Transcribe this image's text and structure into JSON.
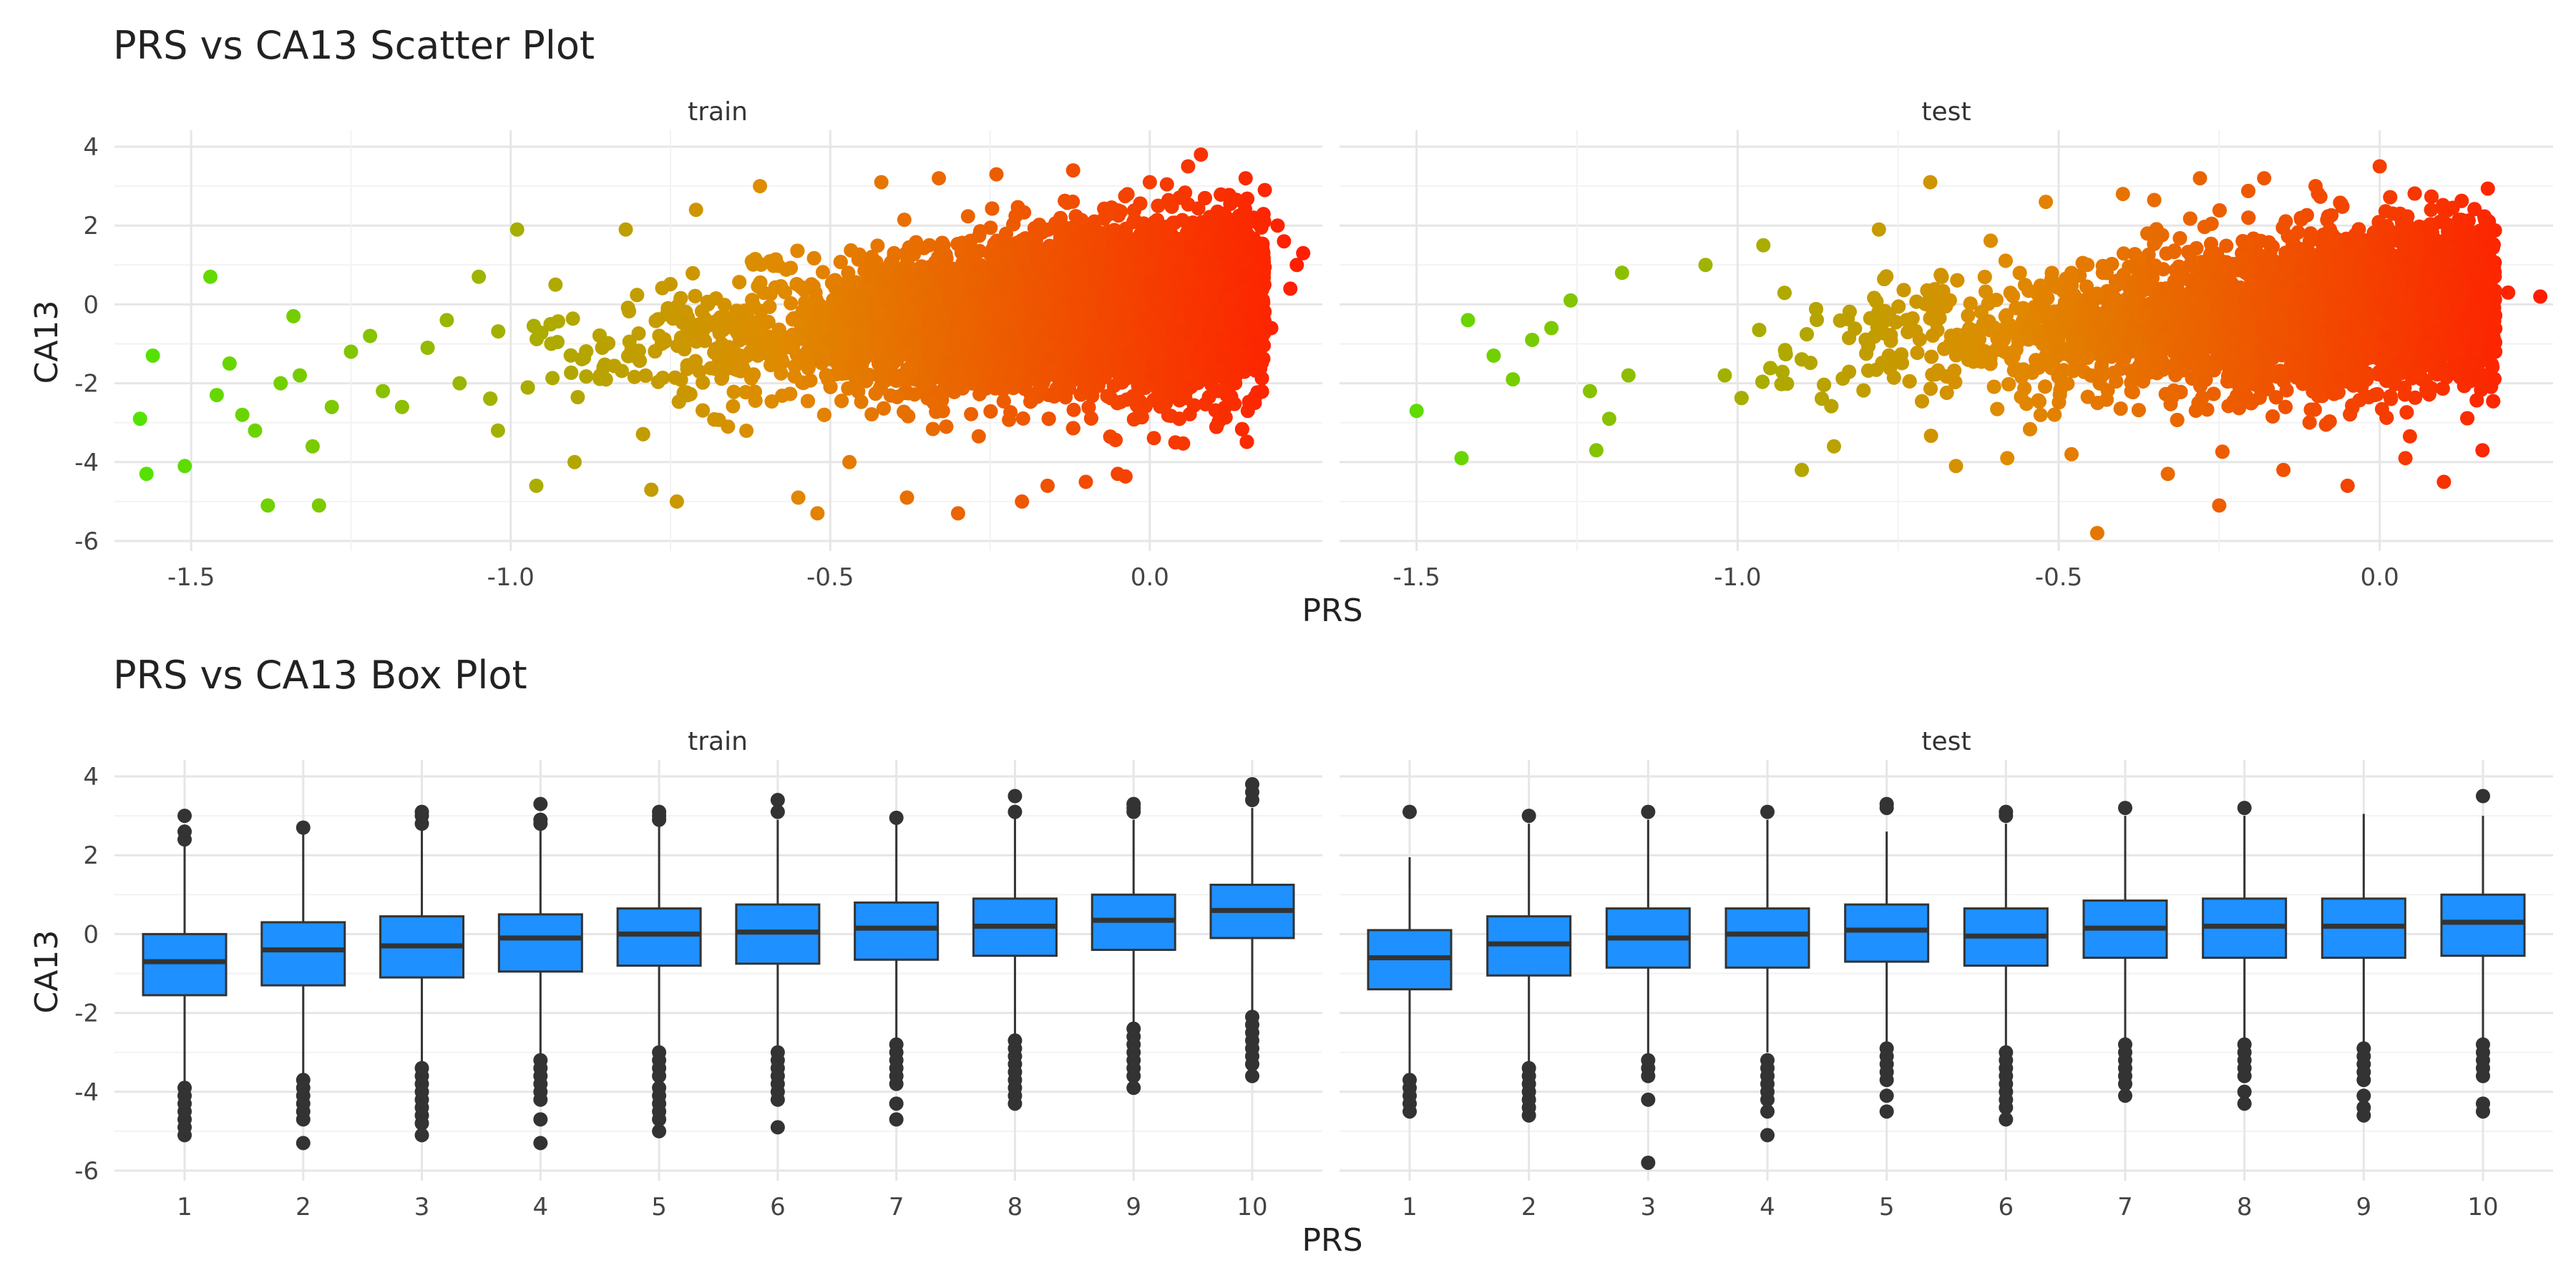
{
  "figure": {
    "scatter_title": "PRS vs CA13 Scatter Plot",
    "box_title": "PRS vs CA13 Box Plot",
    "panel_labels": [
      "train",
      "test"
    ]
  },
  "chart_data": [
    {
      "type": "scatter",
      "title": "PRS vs CA13 Scatter Plot",
      "xlabel": "PRS",
      "ylabel": "CA13",
      "facets": [
        "train",
        "test"
      ],
      "xlim": [
        -1.62,
        0.27
      ],
      "ylim": [
        -6.0,
        4.0
      ],
      "x_ticks": [
        -1.5,
        -1.0,
        -0.5,
        0.0
      ],
      "x_tick_labels": [
        "-1.5",
        "-1.0",
        "-0.5",
        "0.0"
      ],
      "y_ticks": [
        -6,
        -4,
        -2,
        0,
        2,
        4
      ],
      "y_tick_labels": [
        "-6",
        "-4",
        "-2",
        "0",
        "2",
        "4"
      ],
      "grid": true,
      "legend": "none",
      "color_gradient": {
        "low": "#4ee600",
        "mid": "#e08a00",
        "high": "#ff1a00",
        "by": "PRS"
      },
      "trend": {
        "slope": 1.1,
        "intercept": 0.0,
        "spread_sd": 1.05
      },
      "series": [
        {
          "name": "train",
          "points": [
            [
              -1.58,
              -2.9
            ],
            [
              -1.57,
              -4.3
            ],
            [
              -1.56,
              -1.3
            ],
            [
              -1.51,
              -4.1
            ],
            [
              -1.47,
              0.7
            ],
            [
              -1.46,
              -2.3
            ],
            [
              -1.44,
              -1.5
            ],
            [
              -1.42,
              -2.8
            ],
            [
              -1.4,
              -3.2
            ],
            [
              -1.38,
              -5.1
            ],
            [
              -1.36,
              -2.0
            ],
            [
              -1.34,
              -0.3
            ],
            [
              -1.33,
              -1.8
            ],
            [
              -1.31,
              -3.6
            ],
            [
              -1.3,
              -5.1
            ],
            [
              -1.28,
              -2.6
            ],
            [
              -1.25,
              -1.2
            ],
            [
              -1.22,
              -0.8
            ],
            [
              -1.2,
              -2.2
            ],
            [
              -1.17,
              -2.6
            ],
            [
              -1.13,
              -1.1
            ],
            [
              -1.1,
              -0.4
            ],
            [
              -1.08,
              -2.0
            ],
            [
              -1.05,
              0.7
            ],
            [
              -1.02,
              -3.2
            ],
            [
              -0.99,
              1.9
            ],
            [
              -0.96,
              -4.6
            ],
            [
              -0.93,
              0.5
            ],
            [
              -0.9,
              -4.0
            ],
            [
              -0.86,
              -1.8
            ],
            [
              -0.82,
              1.9
            ],
            [
              -0.78,
              -4.7
            ],
            [
              -0.74,
              -5.0
            ],
            [
              -0.71,
              2.4
            ],
            [
              -0.66,
              -3.1
            ],
            [
              -0.61,
              3.0
            ],
            [
              -0.55,
              -4.9
            ],
            [
              -0.52,
              -5.3
            ],
            [
              -0.47,
              -4.0
            ],
            [
              -0.42,
              3.1
            ],
            [
              -0.38,
              -4.9
            ],
            [
              -0.33,
              3.2
            ],
            [
              -0.3,
              -5.3
            ],
            [
              -0.24,
              3.3
            ],
            [
              -0.2,
              -5.0
            ],
            [
              -0.16,
              -4.6
            ],
            [
              -0.12,
              3.4
            ],
            [
              -0.1,
              -4.5
            ],
            [
              -0.05,
              -4.3
            ],
            [
              0.0,
              3.1
            ],
            [
              0.04,
              -3.5
            ],
            [
              0.06,
              3.5
            ],
            [
              0.08,
              3.8
            ],
            [
              0.12,
              -2.3
            ],
            [
              0.15,
              3.2
            ],
            [
              0.18,
              2.9
            ],
            [
              0.2,
              2.0
            ],
            [
              0.21,
              1.6
            ],
            [
              0.23,
              1.0
            ],
            [
              0.22,
              0.4
            ],
            [
              0.24,
              1.3
            ],
            [
              0.19,
              -0.6
            ]
          ]
        },
        {
          "name": "test",
          "points": [
            [
              -1.5,
              -2.7
            ],
            [
              -1.43,
              -3.9
            ],
            [
              -1.42,
              -0.4
            ],
            [
              -1.38,
              -1.3
            ],
            [
              -1.35,
              -1.9
            ],
            [
              -1.32,
              -0.9
            ],
            [
              -1.29,
              -0.6
            ],
            [
              -1.26,
              0.1
            ],
            [
              -1.23,
              -2.2
            ],
            [
              -1.22,
              -3.7
            ],
            [
              -1.2,
              -2.9
            ],
            [
              -1.18,
              0.8
            ],
            [
              -1.17,
              -1.8
            ],
            [
              -1.05,
              1.0
            ],
            [
              -1.02,
              -1.8
            ],
            [
              -0.96,
              1.5
            ],
            [
              -0.9,
              -4.2
            ],
            [
              -0.85,
              -3.6
            ],
            [
              -0.78,
              1.9
            ],
            [
              -0.7,
              3.1
            ],
            [
              -0.66,
              -4.1
            ],
            [
              -0.58,
              -3.9
            ],
            [
              -0.52,
              2.6
            ],
            [
              -0.48,
              -3.8
            ],
            [
              -0.44,
              -5.8
            ],
            [
              -0.4,
              2.8
            ],
            [
              -0.33,
              -4.3
            ],
            [
              -0.28,
              3.2
            ],
            [
              -0.25,
              -5.1
            ],
            [
              -0.18,
              3.2
            ],
            [
              -0.15,
              -4.2
            ],
            [
              -0.1,
              3.0
            ],
            [
              -0.05,
              -4.6
            ],
            [
              0.0,
              3.5
            ],
            [
              0.04,
              -3.9
            ],
            [
              0.08,
              2.4
            ],
            [
              0.1,
              -4.5
            ],
            [
              0.13,
              2.1
            ],
            [
              0.16,
              -3.7
            ],
            [
              0.17,
              1.6
            ],
            [
              0.18,
              -1.2
            ],
            [
              0.2,
              0.3
            ],
            [
              0.25,
              0.2
            ]
          ],
          "n_dense_points": 6000
        }
      ]
    },
    {
      "type": "box",
      "title": "PRS vs CA13 Box Plot",
      "xlabel": "PRS",
      "ylabel": "CA13",
      "facets": [
        "train",
        "test"
      ],
      "categories": [
        "1",
        "2",
        "3",
        "4",
        "5",
        "6",
        "7",
        "8",
        "9",
        "10"
      ],
      "ylim": [
        -6.0,
        4.0
      ],
      "y_ticks": [
        -6,
        -4,
        -2,
        0,
        2,
        4
      ],
      "y_tick_labels": [
        "-6",
        "-4",
        "-2",
        "0",
        "2",
        "4"
      ],
      "grid": true,
      "legend": "none",
      "box_color": "#1e90ff",
      "series": [
        {
          "name": "train",
          "boxes": [
            {
              "q1": -1.55,
              "median": -0.7,
              "q3": 0.0,
              "whisker_low": -3.8,
              "whisker_high": 2.3,
              "outliers": [
                3.0,
                2.6,
                2.4,
                -3.9,
                -4.1,
                -4.3,
                -4.5,
                -4.7,
                -4.9,
                -5.1
              ]
            },
            {
              "q1": -1.3,
              "median": -0.4,
              "q3": 0.3,
              "whisker_low": -3.6,
              "whisker_high": 2.6,
              "outliers": [
                2.7,
                -3.7,
                -3.9,
                -4.1,
                -4.3,
                -4.5,
                -4.7,
                -5.3
              ]
            },
            {
              "q1": -1.1,
              "median": -0.3,
              "q3": 0.45,
              "whisker_low": -3.3,
              "whisker_high": 2.7,
              "outliers": [
                3.1,
                3.0,
                2.8,
                -3.4,
                -3.6,
                -3.8,
                -4.0,
                -4.2,
                -4.4,
                -4.6,
                -4.8,
                -5.1
              ]
            },
            {
              "q1": -0.95,
              "median": -0.1,
              "q3": 0.5,
              "whisker_low": -3.1,
              "whisker_high": 2.7,
              "outliers": [
                3.3,
                2.9,
                2.8,
                -3.2,
                -3.4,
                -3.6,
                -3.8,
                -4.0,
                -4.2,
                -4.7,
                -5.3
              ]
            },
            {
              "q1": -0.8,
              "median": 0.0,
              "q3": 0.65,
              "whisker_low": -2.9,
              "whisker_high": 2.8,
              "outliers": [
                3.1,
                3.0,
                2.9,
                -3.0,
                -3.2,
                -3.4,
                -3.6,
                -3.9,
                -4.1,
                -4.3,
                -4.5,
                -4.7,
                -5.0
              ]
            },
            {
              "q1": -0.75,
              "median": 0.05,
              "q3": 0.75,
              "whisker_low": -2.9,
              "whisker_high": 2.9,
              "outliers": [
                3.4,
                3.1,
                -3.0,
                -3.2,
                -3.4,
                -3.6,
                -3.8,
                -4.0,
                -4.2,
                -4.9
              ]
            },
            {
              "q1": -0.65,
              "median": 0.15,
              "q3": 0.8,
              "whisker_low": -2.7,
              "whisker_high": 2.95,
              "outliers": [
                2.95,
                -2.8,
                -3.0,
                -3.2,
                -3.4,
                -3.6,
                -3.8,
                -4.3,
                -4.7
              ]
            },
            {
              "q1": -0.55,
              "median": 0.2,
              "q3": 0.9,
              "whisker_low": -2.6,
              "whisker_high": 3.0,
              "outliers": [
                3.5,
                3.1,
                -2.7,
                -2.9,
                -3.1,
                -3.3,
                -3.5,
                -3.7,
                -3.9,
                -4.1,
                -4.3
              ]
            },
            {
              "q1": -0.4,
              "median": 0.35,
              "q3": 1.0,
              "whisker_low": -2.3,
              "whisker_high": 2.9,
              "outliers": [
                3.3,
                3.2,
                3.1,
                -2.4,
                -2.6,
                -2.8,
                -3.0,
                -3.2,
                -3.4,
                -3.6,
                -3.9
              ]
            },
            {
              "q1": -0.1,
              "median": 0.6,
              "q3": 1.25,
              "whisker_low": -2.0,
              "whisker_high": 3.2,
              "outliers": [
                3.8,
                3.6,
                3.4,
                -2.1,
                -2.3,
                -2.5,
                -2.7,
                -2.9,
                -3.1,
                -3.3,
                -3.6
              ]
            }
          ]
        },
        {
          "name": "test",
          "boxes": [
            {
              "q1": -1.4,
              "median": -0.6,
              "q3": 0.1,
              "whisker_low": -3.6,
              "whisker_high": 1.95,
              "outliers": [
                3.1,
                -3.7,
                -3.9,
                -4.1,
                -4.3,
                -4.5
              ]
            },
            {
              "q1": -1.05,
              "median": -0.25,
              "q3": 0.45,
              "whisker_low": -3.3,
              "whisker_high": 2.8,
              "outliers": [
                3.0,
                -3.4,
                -3.6,
                -3.8,
                -4.0,
                -4.2,
                -4.4,
                -4.6
              ]
            },
            {
              "q1": -0.85,
              "median": -0.1,
              "q3": 0.65,
              "whisker_low": -3.1,
              "whisker_high": 2.9,
              "outliers": [
                3.1,
                -3.2,
                -3.4,
                -3.6,
                -4.2,
                -5.8
              ]
            },
            {
              "q1": -0.85,
              "median": 0.0,
              "q3": 0.65,
              "whisker_low": -3.0,
              "whisker_high": 2.9,
              "outliers": [
                3.1,
                -3.2,
                -3.4,
                -3.6,
                -3.8,
                -4.0,
                -4.2,
                -4.5,
                -5.1
              ]
            },
            {
              "q1": -0.7,
              "median": 0.1,
              "q3": 0.75,
              "whisker_low": -2.8,
              "whisker_high": 2.6,
              "outliers": [
                3.3,
                3.2,
                -2.9,
                -3.1,
                -3.3,
                -3.5,
                -3.7,
                -4.1,
                -4.5
              ]
            },
            {
              "q1": -0.8,
              "median": -0.05,
              "q3": 0.65,
              "whisker_low": -2.9,
              "whisker_high": 2.8,
              "outliers": [
                3.1,
                3.0,
                -3.0,
                -3.2,
                -3.4,
                -3.6,
                -3.8,
                -4.0,
                -4.2,
                -4.4,
                -4.7
              ]
            },
            {
              "q1": -0.6,
              "median": 0.15,
              "q3": 0.85,
              "whisker_low": -2.7,
              "whisker_high": 3.0,
              "outliers": [
                3.2,
                -2.8,
                -3.0,
                -3.2,
                -3.4,
                -3.6,
                -3.8,
                -4.1
              ]
            },
            {
              "q1": -0.6,
              "median": 0.2,
              "q3": 0.9,
              "whisker_low": -2.7,
              "whisker_high": 3.0,
              "outliers": [
                3.2,
                -2.8,
                -3.0,
                -3.2,
                -3.4,
                -3.6,
                -4.0,
                -4.3
              ]
            },
            {
              "q1": -0.6,
              "median": 0.2,
              "q3": 0.9,
              "whisker_low": -2.8,
              "whisker_high": 3.05,
              "outliers": [
                -2.9,
                -3.1,
                -3.3,
                -3.5,
                -3.7,
                -4.1,
                -4.4,
                -4.6
              ]
            },
            {
              "q1": -0.55,
              "median": 0.3,
              "q3": 1.0,
              "whisker_low": -2.7,
              "whisker_high": 3.0,
              "outliers": [
                3.5,
                -2.8,
                -3.0,
                -3.2,
                -3.4,
                -3.6,
                -4.3,
                -4.5
              ]
            }
          ]
        }
      ]
    }
  ]
}
